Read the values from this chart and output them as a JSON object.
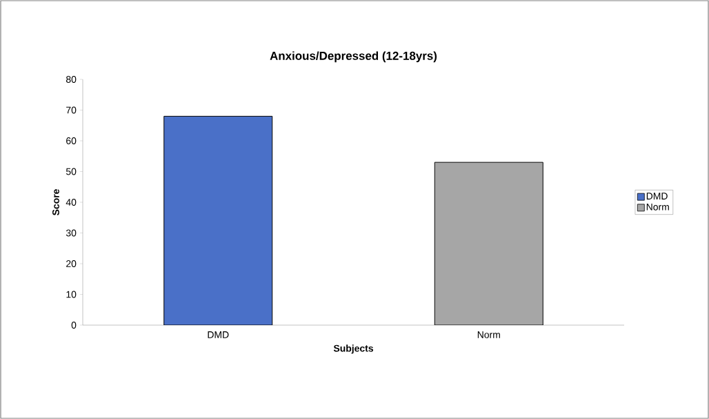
{
  "chart_data": {
    "type": "bar",
    "title": "Anxious/Depressed (12-18yrs)",
    "xlabel": "Subjects",
    "ylabel": "Score",
    "categories": [
      "DMD",
      "Norm"
    ],
    "series": [
      {
        "name": "DMD",
        "color": "#4a70c8",
        "values": [
          68,
          null
        ]
      },
      {
        "name": "Norm",
        "color": "#a6a6a6",
        "values": [
          null,
          53
        ]
      }
    ],
    "ylim": [
      0,
      80
    ],
    "yticks": [
      0,
      10,
      20,
      30,
      40,
      50,
      60,
      70,
      80
    ],
    "grid": false,
    "legend": "right"
  }
}
